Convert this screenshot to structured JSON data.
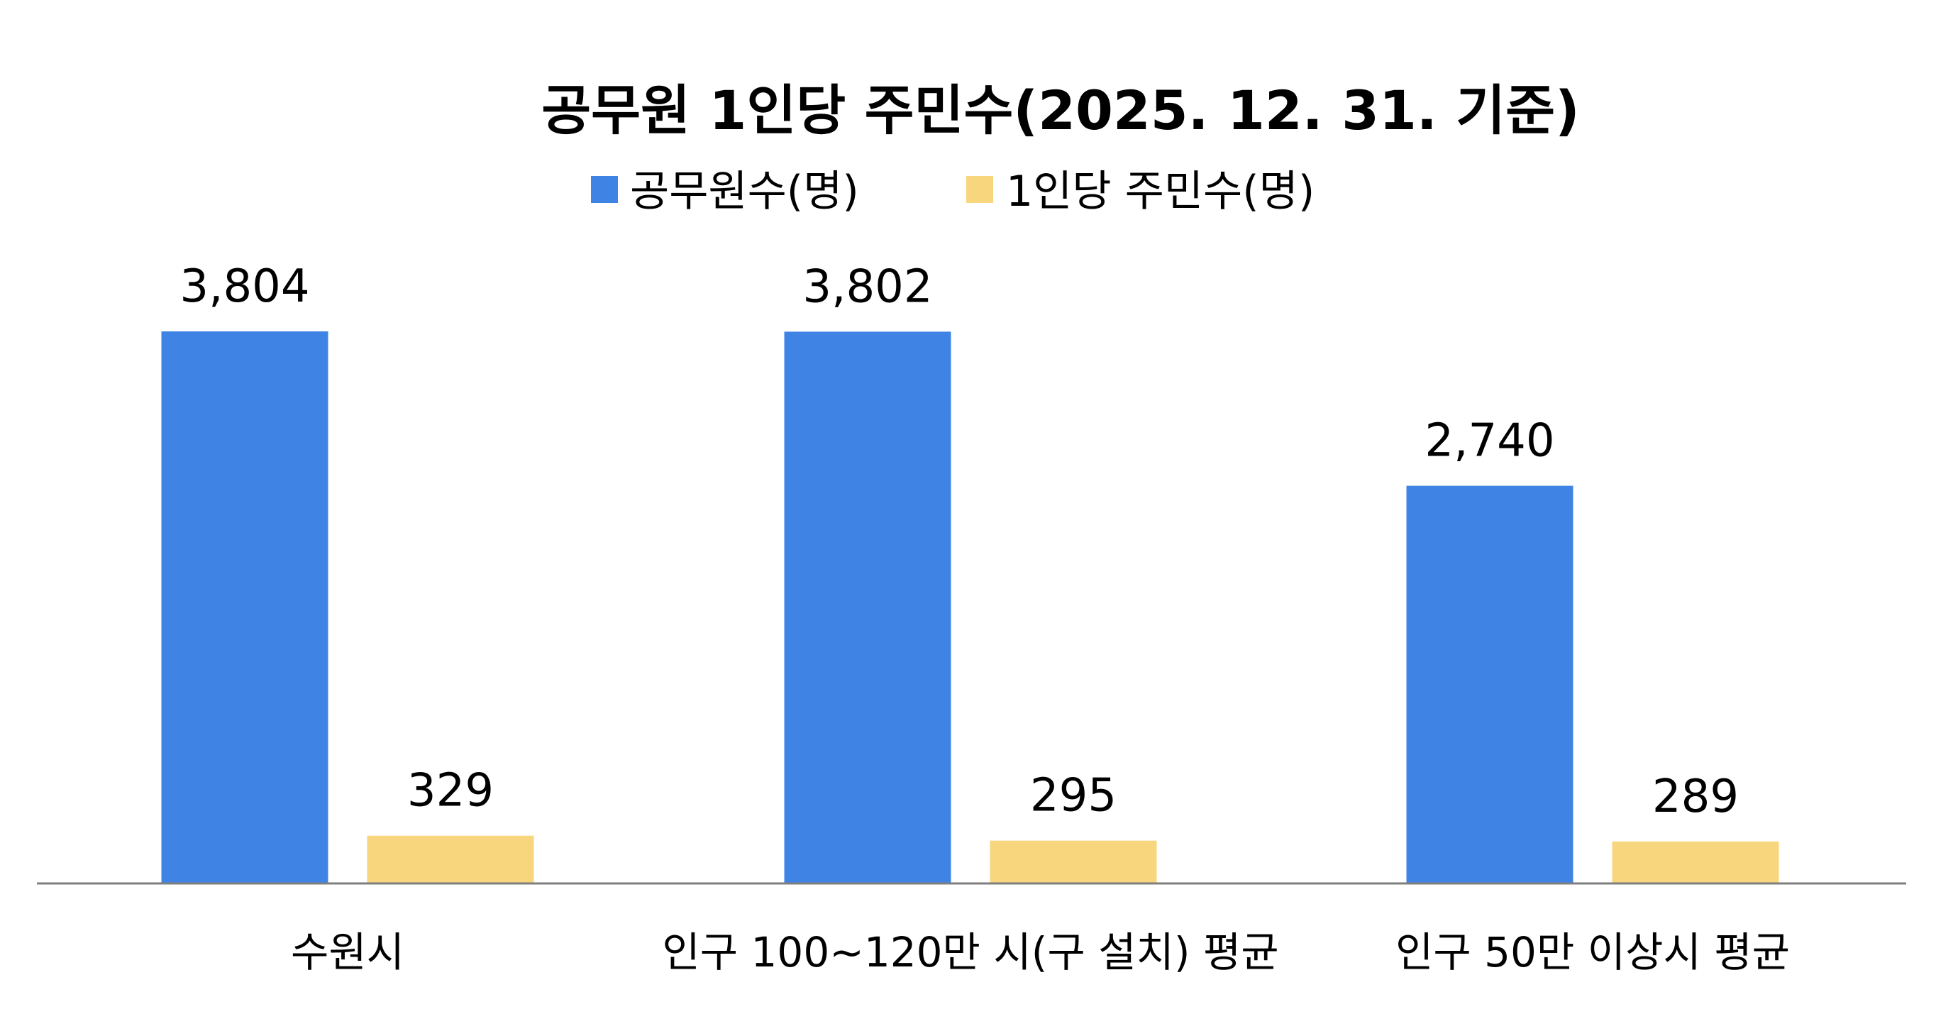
{
  "chart_data": {
    "type": "bar",
    "title": "공무원 1인당 주민수(2025.  12. 31. 기준)",
    "categories": [
      "수원시",
      "인구 100~120만 시(구 설치) 평균",
      "인구 50만 이상시 평균"
    ],
    "series": [
      {
        "name": "공무원수(명)",
        "values": [
          3804,
          3802,
          2740
        ],
        "labels": [
          "3,804",
          "3,802",
          "2,740"
        ],
        "color": "#3F84E5"
      },
      {
        "name": "1인당 주민수(명)",
        "values": [
          329,
          295,
          289
        ],
        "labels": [
          "329",
          "295",
          "289"
        ],
        "color": "#F7D67D"
      }
    ],
    "legend_position": "top-center",
    "grid": false,
    "axis_color": "#7F7F7F"
  }
}
